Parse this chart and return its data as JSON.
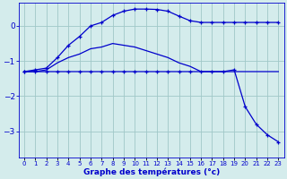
{
  "hours": [
    0,
    1,
    2,
    3,
    4,
    5,
    6,
    7,
    8,
    9,
    10,
    11,
    12,
    13,
    14,
    15,
    16,
    17,
    18,
    19,
    20,
    21,
    22,
    23
  ],
  "max_temp": [
    -1.3,
    -1.25,
    -1.2,
    -0.9,
    -0.55,
    -0.3,
    0.0,
    0.1,
    0.3,
    0.42,
    0.48,
    0.48,
    0.47,
    0.42,
    0.28,
    0.15,
    0.1,
    0.1,
    0.1,
    0.1,
    0.1,
    0.1,
    0.1,
    0.1
  ],
  "min_temp": [
    -1.3,
    -1.3,
    -1.3,
    -1.3,
    -1.3,
    -1.3,
    -1.3,
    -1.3,
    -1.3,
    -1.3,
    -1.3,
    -1.3,
    -1.3,
    -1.3,
    -1.3,
    -1.3,
    -1.3,
    -1.3,
    -1.3,
    -1.25,
    -2.3,
    -2.8,
    -3.1,
    -3.3
  ],
  "avg_temp": [
    -1.3,
    -1.3,
    -1.25,
    -1.05,
    -0.9,
    -0.8,
    -0.65,
    -0.6,
    -0.5,
    -0.55,
    -0.6,
    -0.7,
    -0.8,
    -0.9,
    -1.05,
    -1.15,
    -1.3,
    -1.3,
    -1.3,
    -1.3,
    -1.3,
    -1.3,
    -1.3,
    -1.3
  ],
  "bg_color": "#d4ecec",
  "line_color": "#0000cc",
  "grid_color": "#a0c8c8",
  "xlabel": "Graphe des températures (°c)",
  "ylim": [
    -3.75,
    0.65
  ],
  "yticks": [
    0,
    -1,
    -2,
    -3
  ],
  "xlim": [
    -0.5,
    23.5
  ]
}
